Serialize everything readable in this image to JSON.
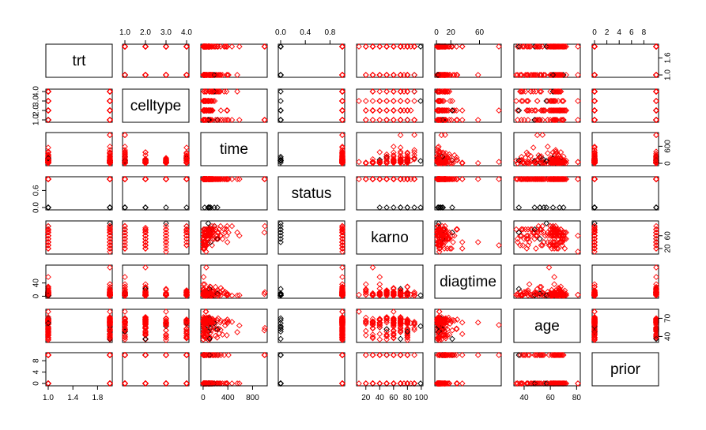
{
  "colors": {
    "censored": "#000000",
    "event": "#ff0000"
  },
  "chart_data": {
    "type": "scatter",
    "layout": "scatterplot-matrix",
    "variables": [
      {
        "name": "trt",
        "range": [
          1,
          2
        ],
        "ticks": [
          1.0,
          1.4,
          1.8
        ],
        "tick_labels": [
          "1.0",
          "1.4",
          "1.8"
        ],
        "tick_labels_right": [
          "1.0",
          "1.6"
        ],
        "ticks_right": [
          1.0,
          1.6
        ]
      },
      {
        "name": "celltype",
        "range": [
          1,
          4
        ],
        "ticks": [
          1.0,
          2.0,
          3.0,
          4.0
        ],
        "tick_labels": [
          "1.0",
          "2.0",
          "3.0",
          "4.0"
        ]
      },
      {
        "name": "time",
        "range": [
          1,
          999
        ],
        "ticks": [
          0,
          400,
          800
        ],
        "tick_labels": [
          "0",
          "400",
          "800"
        ],
        "ticks_right": [
          0,
          600
        ],
        "tick_labels_right": [
          "0",
          "600"
        ]
      },
      {
        "name": "status",
        "range": [
          0,
          1
        ],
        "ticks": [
          0.0,
          0.4,
          0.8
        ],
        "tick_labels": [
          "0.0",
          "0.4",
          "0.8"
        ],
        "ticks_left": [
          0.0,
          0.6
        ],
        "tick_labels_left": [
          "0.0",
          "0.6"
        ]
      },
      {
        "name": "karno",
        "range": [
          10,
          99
        ],
        "ticks": [
          20,
          40,
          60,
          80,
          100
        ],
        "tick_labels": [
          "20",
          "40",
          "60",
          "80",
          "100"
        ],
        "ticks_right": [
          20,
          60
        ],
        "tick_labels_right": [
          "20",
          "60"
        ]
      },
      {
        "name": "diagtime",
        "range": [
          1,
          87
        ],
        "ticks": [
          0,
          20,
          60
        ],
        "tick_labels": [
          "0",
          "20",
          "60"
        ],
        "ticks_left": [
          0,
          40
        ],
        "tick_labels_left": [
          "0",
          "40"
        ]
      },
      {
        "name": "age",
        "range": [
          34,
          81
        ],
        "ticks": [
          40,
          60,
          80
        ],
        "tick_labels": [
          "40",
          "60",
          "80"
        ],
        "ticks_right": [
          40,
          70
        ],
        "tick_labels_right": [
          "40",
          "70"
        ]
      },
      {
        "name": "prior",
        "range": [
          0,
          10
        ],
        "ticks": [
          0,
          2,
          4,
          6,
          8
        ],
        "tick_labels": [
          "0",
          "2",
          "4",
          "6",
          "8"
        ],
        "ticks_left": [
          0,
          4,
          8
        ],
        "tick_labels_left": [
          "0",
          "4",
          "8"
        ]
      }
    ],
    "marker": "diamond-open",
    "color_by": "status",
    "data_columns": [
      "trt",
      "celltype",
      "time",
      "status",
      "karno",
      "diagtime",
      "age",
      "prior"
    ],
    "data": [
      [
        1,
        1,
        72,
        1,
        60,
        7,
        69,
        0
      ],
      [
        1,
        1,
        411,
        1,
        70,
        5,
        64,
        10
      ],
      [
        1,
        1,
        228,
        1,
        60,
        3,
        38,
        0
      ],
      [
        1,
        1,
        126,
        1,
        60,
        9,
        63,
        10
      ],
      [
        1,
        1,
        118,
        1,
        70,
        11,
        65,
        10
      ],
      [
        1,
        1,
        10,
        1,
        20,
        5,
        49,
        0
      ],
      [
        1,
        1,
        82,
        1,
        40,
        10,
        69,
        10
      ],
      [
        1,
        1,
        110,
        1,
        80,
        29,
        68,
        0
      ],
      [
        1,
        1,
        314,
        1,
        50,
        18,
        43,
        0
      ],
      [
        1,
        1,
        100,
        0,
        70,
        6,
        70,
        0
      ],
      [
        1,
        1,
        42,
        1,
        60,
        4,
        81,
        0
      ],
      [
        1,
        1,
        8,
        1,
        40,
        58,
        63,
        10
      ],
      [
        1,
        1,
        144,
        1,
        30,
        4,
        63,
        0
      ],
      [
        1,
        1,
        25,
        0,
        80,
        9,
        52,
        10
      ],
      [
        1,
        1,
        11,
        1,
        70,
        11,
        48,
        10
      ],
      [
        1,
        2,
        30,
        1,
        60,
        3,
        61,
        0
      ],
      [
        1,
        2,
        384,
        1,
        60,
        9,
        42,
        0
      ],
      [
        1,
        2,
        4,
        1,
        40,
        2,
        35,
        0
      ],
      [
        1,
        2,
        54,
        1,
        80,
        4,
        63,
        10
      ],
      [
        1,
        2,
        13,
        1,
        60,
        4,
        56,
        0
      ],
      [
        1,
        2,
        123,
        0,
        40,
        3,
        55,
        0
      ],
      [
        1,
        2,
        97,
        0,
        60,
        5,
        67,
        0
      ],
      [
        1,
        2,
        153,
        1,
        60,
        14,
        63,
        10
      ],
      [
        1,
        2,
        59,
        1,
        30,
        2,
        65,
        0
      ],
      [
        1,
        2,
        117,
        1,
        80,
        3,
        46,
        0
      ],
      [
        1,
        2,
        16,
        1,
        30,
        4,
        53,
        10
      ],
      [
        1,
        2,
        151,
        1,
        50,
        12,
        69,
        0
      ],
      [
        1,
        2,
        22,
        1,
        60,
        4,
        68,
        0
      ],
      [
        1,
        2,
        56,
        1,
        80,
        12,
        43,
        10
      ],
      [
        1,
        2,
        21,
        1,
        40,
        2,
        55,
        10
      ],
      [
        1,
        2,
        18,
        1,
        20,
        15,
        42,
        0
      ],
      [
        1,
        2,
        139,
        1,
        80,
        2,
        64,
        0
      ],
      [
        1,
        2,
        20,
        1,
        30,
        5,
        65,
        0
      ],
      [
        1,
        2,
        31,
        1,
        75,
        3,
        65,
        0
      ],
      [
        1,
        2,
        52,
        1,
        70,
        2,
        55,
        0
      ],
      [
        1,
        2,
        287,
        1,
        60,
        25,
        66,
        10
      ],
      [
        1,
        2,
        18,
        1,
        30,
        4,
        60,
        0
      ],
      [
        1,
        2,
        51,
        1,
        60,
        1,
        67,
        0
      ],
      [
        1,
        2,
        122,
        1,
        80,
        28,
        53,
        0
      ],
      [
        1,
        2,
        27,
        1,
        60,
        8,
        62,
        0
      ],
      [
        1,
        2,
        54,
        1,
        70,
        1,
        67,
        0
      ],
      [
        1,
        2,
        7,
        1,
        50,
        7,
        72,
        0
      ],
      [
        1,
        2,
        63,
        1,
        50,
        11,
        48,
        0
      ],
      [
        1,
        2,
        392,
        1,
        40,
        4,
        68,
        0
      ],
      [
        1,
        2,
        10,
        1,
        40,
        23,
        67,
        10
      ],
      [
        1,
        3,
        8,
        1,
        20,
        19,
        61,
        10
      ],
      [
        1,
        3,
        92,
        1,
        70,
        10,
        60,
        0
      ],
      [
        1,
        3,
        35,
        1,
        40,
        6,
        62,
        0
      ],
      [
        1,
        3,
        117,
        1,
        80,
        2,
        38,
        0
      ],
      [
        1,
        3,
        132,
        1,
        80,
        5,
        50,
        0
      ],
      [
        1,
        3,
        12,
        1,
        50,
        4,
        63,
        10
      ],
      [
        1,
        3,
        162,
        1,
        80,
        5,
        64,
        0
      ],
      [
        1,
        3,
        3,
        1,
        30,
        3,
        43,
        0
      ],
      [
        1,
        3,
        95,
        1,
        80,
        4,
        34,
        0
      ],
      [
        1,
        4,
        177,
        1,
        50,
        16,
        66,
        10
      ],
      [
        1,
        4,
        162,
        1,
        80,
        5,
        62,
        0
      ],
      [
        1,
        4,
        216,
        1,
        50,
        15,
        52,
        0
      ],
      [
        1,
        4,
        553,
        1,
        70,
        2,
        47,
        0
      ],
      [
        1,
        4,
        278,
        1,
        60,
        12,
        63,
        0
      ],
      [
        1,
        4,
        12,
        1,
        40,
        12,
        68,
        10
      ],
      [
        1,
        4,
        260,
        1,
        80,
        5,
        45,
        0
      ],
      [
        1,
        4,
        200,
        1,
        80,
        12,
        41,
        10
      ],
      [
        1,
        4,
        156,
        1,
        70,
        2,
        66,
        0
      ],
      [
        1,
        4,
        182,
        0,
        90,
        2,
        62,
        0
      ],
      [
        1,
        4,
        143,
        1,
        90,
        8,
        60,
        0
      ],
      [
        1,
        4,
        105,
        1,
        80,
        11,
        66,
        0
      ],
      [
        1,
        4,
        103,
        1,
        80,
        5,
        38,
        0
      ],
      [
        1,
        4,
        250,
        1,
        70,
        8,
        53,
        10
      ],
      [
        1,
        4,
        100,
        1,
        60,
        13,
        37,
        10
      ],
      [
        2,
        1,
        999,
        1,
        90,
        12,
        54,
        10
      ],
      [
        2,
        1,
        112,
        1,
        80,
        6,
        60,
        0
      ],
      [
        2,
        1,
        87,
        0,
        80,
        3,
        48,
        0
      ],
      [
        2,
        1,
        231,
        0,
        50,
        8,
        52,
        10
      ],
      [
        2,
        1,
        242,
        1,
        50,
        1,
        70,
        0
      ],
      [
        2,
        1,
        991,
        1,
        70,
        7,
        50,
        10
      ],
      [
        2,
        1,
        111,
        1,
        70,
        3,
        62,
        0
      ],
      [
        2,
        1,
        1,
        1,
        20,
        21,
        65,
        10
      ],
      [
        2,
        1,
        587,
        1,
        60,
        3,
        58,
        0
      ],
      [
        2,
        1,
        389,
        1,
        90,
        2,
        62,
        0
      ],
      [
        2,
        1,
        33,
        1,
        30,
        6,
        64,
        0
      ],
      [
        2,
        1,
        25,
        1,
        20,
        36,
        63,
        0
      ],
      [
        2,
        1,
        357,
        1,
        70,
        13,
        58,
        0
      ],
      [
        2,
        1,
        467,
        1,
        90,
        2,
        64,
        0
      ],
      [
        2,
        1,
        201,
        1,
        80,
        28,
        52,
        10
      ],
      [
        2,
        1,
        1,
        1,
        50,
        7,
        35,
        0
      ],
      [
        2,
        1,
        30,
        1,
        70,
        11,
        63,
        0
      ],
      [
        2,
        1,
        44,
        1,
        60,
        13,
        70,
        10
      ],
      [
        2,
        1,
        283,
        1,
        90,
        2,
        51,
        0
      ],
      [
        2,
        1,
        15,
        1,
        50,
        13,
        40,
        10
      ],
      [
        2,
        2,
        25,
        1,
        30,
        2,
        69,
        0
      ],
      [
        2,
        2,
        103,
        0,
        70,
        22,
        36,
        10
      ],
      [
        2,
        2,
        21,
        1,
        20,
        4,
        71,
        0
      ],
      [
        2,
        2,
        13,
        1,
        30,
        2,
        62,
        0
      ],
      [
        2,
        2,
        87,
        1,
        60,
        2,
        60,
        0
      ],
      [
        2,
        2,
        2,
        1,
        40,
        36,
        44,
        10
      ],
      [
        2,
        2,
        20,
        1,
        30,
        9,
        54,
        10
      ],
      [
        2,
        2,
        7,
        1,
        20,
        11,
        66,
        0
      ],
      [
        2,
        2,
        24,
        1,
        60,
        8,
        49,
        0
      ],
      [
        2,
        2,
        99,
        1,
        70,
        3,
        72,
        0
      ],
      [
        2,
        2,
        8,
        1,
        80,
        2,
        68,
        0
      ],
      [
        2,
        2,
        99,
        1,
        85,
        4,
        62,
        0
      ],
      [
        2,
        2,
        61,
        1,
        70,
        2,
        71,
        0
      ],
      [
        2,
        2,
        25,
        1,
        70,
        2,
        70,
        0
      ],
      [
        2,
        2,
        95,
        1,
        70,
        1,
        61,
        0
      ],
      [
        2,
        2,
        80,
        1,
        50,
        17,
        71,
        0
      ],
      [
        2,
        2,
        51,
        1,
        30,
        87,
        59,
        10
      ],
      [
        2,
        2,
        29,
        1,
        40,
        8,
        67,
        0
      ],
      [
        2,
        3,
        24,
        1,
        40,
        2,
        60,
        0
      ],
      [
        2,
        3,
        18,
        1,
        40,
        5,
        69,
        10
      ],
      [
        2,
        3,
        83,
        0,
        99,
        3,
        57,
        0
      ],
      [
        2,
        3,
        31,
        1,
        80,
        3,
        39,
        0
      ],
      [
        2,
        3,
        51,
        1,
        60,
        5,
        62,
        0
      ],
      [
        2,
        3,
        90,
        1,
        60,
        22,
        50,
        10
      ],
      [
        2,
        3,
        52,
        1,
        60,
        3,
        43,
        0
      ],
      [
        2,
        3,
        73,
        1,
        60,
        3,
        70,
        0
      ],
      [
        2,
        3,
        8,
        1,
        50,
        5,
        66,
        0
      ],
      [
        2,
        3,
        36,
        1,
        70,
        8,
        61,
        0
      ],
      [
        2,
        3,
        48,
        1,
        10,
        4,
        81,
        0
      ],
      [
        2,
        3,
        7,
        1,
        40,
        4,
        58,
        0
      ],
      [
        2,
        3,
        140,
        1,
        70,
        3,
        63,
        0
      ],
      [
        2,
        3,
        186,
        1,
        90,
        3,
        60,
        0
      ],
      [
        2,
        3,
        84,
        1,
        80,
        4,
        62,
        10
      ],
      [
        2,
        3,
        19,
        1,
        50,
        10,
        42,
        0
      ],
      [
        2,
        3,
        45,
        1,
        40,
        3,
        69,
        0
      ],
      [
        2,
        3,
        80,
        1,
        40,
        4,
        63,
        0
      ],
      [
        2,
        4,
        52,
        1,
        60,
        4,
        45,
        0
      ],
      [
        2,
        4,
        164,
        1,
        70,
        15,
        68,
        10
      ],
      [
        2,
        4,
        19,
        1,
        30,
        4,
        39,
        10
      ],
      [
        2,
        4,
        53,
        1,
        60,
        12,
        66,
        0
      ],
      [
        2,
        4,
        15,
        1,
        30,
        5,
        63,
        0
      ],
      [
        2,
        4,
        43,
        1,
        60,
        11,
        49,
        10
      ],
      [
        2,
        4,
        340,
        1,
        80,
        10,
        64,
        10
      ],
      [
        2,
        4,
        133,
        1,
        75,
        1,
        65,
        0
      ],
      [
        2,
        4,
        111,
        1,
        60,
        5,
        64,
        0
      ],
      [
        2,
        4,
        231,
        1,
        70,
        18,
        67,
        10
      ],
      [
        2,
        4,
        378,
        1,
        80,
        4,
        65,
        0
      ],
      [
        2,
        4,
        49,
        1,
        30,
        3,
        37,
        0
      ]
    ]
  }
}
